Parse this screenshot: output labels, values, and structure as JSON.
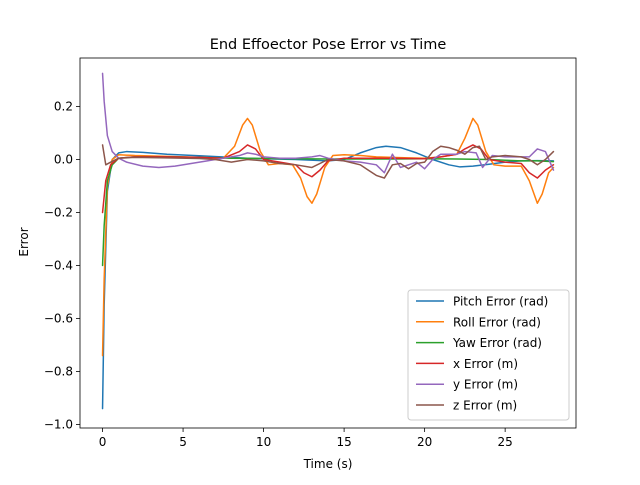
{
  "chart_data": {
    "type": "line",
    "title": "End Effoector Pose Error vs Time",
    "xlabel": "Time (s)",
    "ylabel": "Error",
    "xlim": [
      -1.4,
      29.4
    ],
    "ylim": [
      -1.013,
      0.383
    ],
    "x_ticks": [
      0,
      5,
      10,
      15,
      20,
      25
    ],
    "x_tick_labels": [
      "0",
      "5",
      "10",
      "15",
      "20",
      "25"
    ],
    "y_ticks": [
      -1.0,
      -0.8,
      -0.6,
      -0.4,
      -0.2,
      0.0,
      0.2
    ],
    "y_tick_labels": [
      "−1.0",
      "−0.8",
      "−0.6",
      "−0.4",
      "−0.2",
      "0.0",
      "0.2"
    ],
    "grid": false,
    "legend_position": "lower-right",
    "series": [
      {
        "name": "Pitch Error (rad)",
        "color": "#1f77b4",
        "points": [
          [
            0,
            -0.94
          ],
          [
            0.1,
            -0.55
          ],
          [
            0.3,
            -0.12
          ],
          [
            0.6,
            0.0
          ],
          [
            1.0,
            0.025
          ],
          [
            1.5,
            0.03
          ],
          [
            2.5,
            0.027
          ],
          [
            4,
            0.02
          ],
          [
            6,
            0.014
          ],
          [
            8,
            0.008
          ],
          [
            9,
            0.005
          ],
          [
            10,
            0.003
          ],
          [
            12,
            0.0
          ],
          [
            14,
            -0.005
          ],
          [
            15,
            0.0
          ],
          [
            16,
            0.025
          ],
          [
            17,
            0.045
          ],
          [
            17.6,
            0.05
          ],
          [
            18.5,
            0.045
          ],
          [
            19.5,
            0.025
          ],
          [
            20.5,
            0.0
          ],
          [
            21.5,
            -0.02
          ],
          [
            22.2,
            -0.028
          ],
          [
            23,
            -0.025
          ],
          [
            24,
            -0.018
          ],
          [
            25,
            -0.01
          ],
          [
            26,
            -0.005
          ],
          [
            27,
            -0.004
          ],
          [
            28,
            -0.005
          ]
        ]
      },
      {
        "name": "Roll Error (rad)",
        "color": "#ff7f0e",
        "points": [
          [
            0,
            -0.74
          ],
          [
            0.1,
            -0.45
          ],
          [
            0.3,
            -0.1
          ],
          [
            0.6,
            0.0
          ],
          [
            1.0,
            0.018
          ],
          [
            2,
            0.015
          ],
          [
            4,
            0.012
          ],
          [
            6,
            0.008
          ],
          [
            7.5,
            0.005
          ],
          [
            8.2,
            0.05
          ],
          [
            8.7,
            0.13
          ],
          [
            9.0,
            0.155
          ],
          [
            9.3,
            0.13
          ],
          [
            9.8,
            0.03
          ],
          [
            10.3,
            -0.02
          ],
          [
            11,
            -0.015
          ],
          [
            11.8,
            -0.02
          ],
          [
            12.3,
            -0.07
          ],
          [
            12.7,
            -0.14
          ],
          [
            13.0,
            -0.165
          ],
          [
            13.3,
            -0.13
          ],
          [
            13.8,
            -0.03
          ],
          [
            14.3,
            0.015
          ],
          [
            15,
            0.018
          ],
          [
            16,
            0.015
          ],
          [
            17,
            0.01
          ],
          [
            18,
            0.008
          ],
          [
            19,
            0.006
          ],
          [
            20,
            0.005
          ],
          [
            21,
            0.01
          ],
          [
            22,
            0.02
          ],
          [
            22.5,
            0.08
          ],
          [
            23.0,
            0.155
          ],
          [
            23.3,
            0.13
          ],
          [
            23.8,
            0.03
          ],
          [
            24.3,
            -0.02
          ],
          [
            25,
            -0.025
          ],
          [
            26,
            -0.025
          ],
          [
            26.5,
            -0.08
          ],
          [
            27.0,
            -0.165
          ],
          [
            27.3,
            -0.13
          ],
          [
            27.7,
            -0.05
          ],
          [
            28,
            -0.03
          ]
        ]
      },
      {
        "name": "Yaw Error (rad)",
        "color": "#2ca02c",
        "points": [
          [
            0,
            -0.4
          ],
          [
            0.1,
            -0.25
          ],
          [
            0.3,
            -0.08
          ],
          [
            0.6,
            -0.02
          ],
          [
            1.0,
            0.005
          ],
          [
            2,
            0.01
          ],
          [
            4,
            0.01
          ],
          [
            6,
            0.008
          ],
          [
            8,
            0.005
          ],
          [
            10,
            0.004
          ],
          [
            12,
            0.003
          ],
          [
            14,
            0.002
          ],
          [
            16,
            0.002
          ],
          [
            18,
            0.002
          ],
          [
            20,
            0.003
          ],
          [
            22,
            0.002
          ],
          [
            24,
            0.0
          ],
          [
            25,
            -0.003
          ],
          [
            26,
            -0.005
          ],
          [
            27,
            -0.005
          ],
          [
            28,
            -0.008
          ]
        ]
      },
      {
        "name": "x Error (m)",
        "color": "#d62728",
        "points": [
          [
            0,
            -0.2
          ],
          [
            0.2,
            -0.08
          ],
          [
            0.5,
            -0.02
          ],
          [
            1.0,
            0.005
          ],
          [
            2,
            0.01
          ],
          [
            4,
            0.01
          ],
          [
            6,
            0.008
          ],
          [
            7.5,
            0.005
          ],
          [
            8.5,
            0.03
          ],
          [
            9.0,
            0.055
          ],
          [
            9.5,
            0.04
          ],
          [
            10,
            0.0
          ],
          [
            11,
            -0.01
          ],
          [
            12,
            -0.02
          ],
          [
            12.5,
            -0.05
          ],
          [
            13.0,
            -0.065
          ],
          [
            13.5,
            -0.04
          ],
          [
            14,
            -0.005
          ],
          [
            15,
            0.005
          ],
          [
            16,
            0.005
          ],
          [
            17,
            0.005
          ],
          [
            18,
            0.005
          ],
          [
            19,
            0.004
          ],
          [
            20,
            0.003
          ],
          [
            21,
            0.01
          ],
          [
            22,
            0.02
          ],
          [
            22.5,
            0.04
          ],
          [
            23.0,
            0.055
          ],
          [
            23.5,
            0.04
          ],
          [
            24,
            0.0
          ],
          [
            25,
            -0.01
          ],
          [
            26,
            -0.015
          ],
          [
            26.5,
            -0.05
          ],
          [
            27.0,
            -0.07
          ],
          [
            27.5,
            -0.04
          ],
          [
            28,
            -0.02
          ]
        ]
      },
      {
        "name": "y Error (m)",
        "color": "#9467bd",
        "points": [
          [
            0,
            0.325
          ],
          [
            0.1,
            0.22
          ],
          [
            0.3,
            0.09
          ],
          [
            0.6,
            0.03
          ],
          [
            1.0,
            0.005
          ],
          [
            1.5,
            -0.01
          ],
          [
            2.5,
            -0.025
          ],
          [
            3.5,
            -0.03
          ],
          [
            4.5,
            -0.025
          ],
          [
            5.5,
            -0.015
          ],
          [
            6.5,
            -0.005
          ],
          [
            7.5,
            0.005
          ],
          [
            8.5,
            0.015
          ],
          [
            9,
            0.025
          ],
          [
            9.5,
            0.02
          ],
          [
            10,
            0.01
          ],
          [
            11,
            0.005
          ],
          [
            12,
            0.005
          ],
          [
            13,
            0.01
          ],
          [
            13.5,
            0.015
          ],
          [
            14,
            0.005
          ],
          [
            15,
            -0.005
          ],
          [
            16,
            -0.01
          ],
          [
            17,
            -0.02
          ],
          [
            17.5,
            -0.05
          ],
          [
            18,
            0.02
          ],
          [
            18.5,
            -0.03
          ],
          [
            19,
            -0.02
          ],
          [
            19.5,
            -0.01
          ],
          [
            20,
            -0.035
          ],
          [
            20.5,
            0.0
          ],
          [
            21,
            0.02
          ],
          [
            22,
            0.02
          ],
          [
            22.5,
            0.03
          ],
          [
            23.2,
            0.025
          ],
          [
            23.6,
            -0.03
          ],
          [
            24.2,
            0.015
          ],
          [
            25,
            0.01
          ],
          [
            26,
            0.01
          ],
          [
            26.5,
            0.01
          ],
          [
            27,
            0.04
          ],
          [
            27.5,
            0.03
          ],
          [
            28,
            -0.04
          ]
        ]
      },
      {
        "name": "z Error (m)",
        "color": "#8c564b",
        "points": [
          [
            0,
            0.055
          ],
          [
            0.2,
            -0.02
          ],
          [
            0.5,
            -0.01
          ],
          [
            1.0,
            0.005
          ],
          [
            2,
            0.008
          ],
          [
            4,
            0.006
          ],
          [
            6,
            0.004
          ],
          [
            7,
            0.0
          ],
          [
            8,
            -0.01
          ],
          [
            9,
            0.0
          ],
          [
            10,
            -0.005
          ],
          [
            11,
            -0.015
          ],
          [
            12,
            -0.02
          ],
          [
            13,
            -0.03
          ],
          [
            14,
            0.0
          ],
          [
            15,
            -0.005
          ],
          [
            16,
            -0.02
          ],
          [
            16.5,
            -0.04
          ],
          [
            17,
            -0.06
          ],
          [
            17.5,
            -0.07
          ],
          [
            18,
            -0.02
          ],
          [
            18.5,
            -0.015
          ],
          [
            19,
            -0.035
          ],
          [
            19.5,
            -0.015
          ],
          [
            20,
            -0.01
          ],
          [
            20.5,
            0.03
          ],
          [
            21,
            0.05
          ],
          [
            21.5,
            0.045
          ],
          [
            22,
            0.035
          ],
          [
            22.5,
            0.02
          ],
          [
            23,
            0.045
          ],
          [
            23.4,
            0.05
          ],
          [
            23.8,
            0.0
          ],
          [
            24.2,
            0.01
          ],
          [
            25,
            0.015
          ],
          [
            26,
            0.01
          ],
          [
            26.5,
            0.0
          ],
          [
            27,
            -0.02
          ],
          [
            27.5,
            0.0
          ],
          [
            28,
            0.03
          ]
        ]
      }
    ]
  }
}
